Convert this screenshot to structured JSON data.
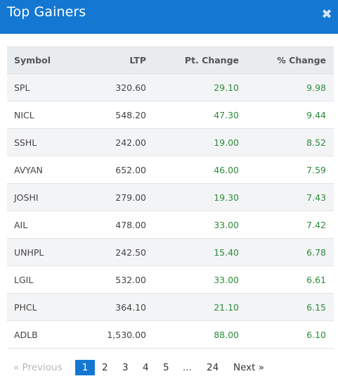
{
  "header": {
    "title": "Top Gainers",
    "close_label": "✖"
  },
  "table": {
    "columns": [
      "Symbol",
      "LTP",
      "Pt. Change",
      "% Change"
    ],
    "rows": [
      {
        "symbol": "SPL",
        "ltp": "320.60",
        "pt": "29.10",
        "pct": "9.98"
      },
      {
        "symbol": "NICL",
        "ltp": "548.20",
        "pt": "47.30",
        "pct": "9.44"
      },
      {
        "symbol": "SSHL",
        "ltp": "242.00",
        "pt": "19.00",
        "pct": "8.52"
      },
      {
        "symbol": "AVYAN",
        "ltp": "652.00",
        "pt": "46.00",
        "pct": "7.59"
      },
      {
        "symbol": "JOSHI",
        "ltp": "279.00",
        "pt": "19.30",
        "pct": "7.43"
      },
      {
        "symbol": "AIL",
        "ltp": "478.00",
        "pt": "33.00",
        "pct": "7.42"
      },
      {
        "symbol": "UNHPL",
        "ltp": "242.50",
        "pt": "15.40",
        "pct": "6.78"
      },
      {
        "symbol": "LGIL",
        "ltp": "532.00",
        "pt": "33.00",
        "pct": "6.61"
      },
      {
        "symbol": "PHCL",
        "ltp": "364.10",
        "pt": "21.10",
        "pct": "6.15"
      },
      {
        "symbol": "ADLB",
        "ltp": "1,530.00",
        "pt": "88.00",
        "pct": "6.10"
      }
    ]
  },
  "pagination": {
    "previous": "« Previous",
    "pages": [
      "1",
      "2",
      "3",
      "4",
      "5",
      "...",
      "24"
    ],
    "current": "1",
    "next": "Next »"
  },
  "colors": {
    "header_bg": "#1478d2",
    "positive": "#2e8b3c",
    "active_page": "#1478d2"
  }
}
